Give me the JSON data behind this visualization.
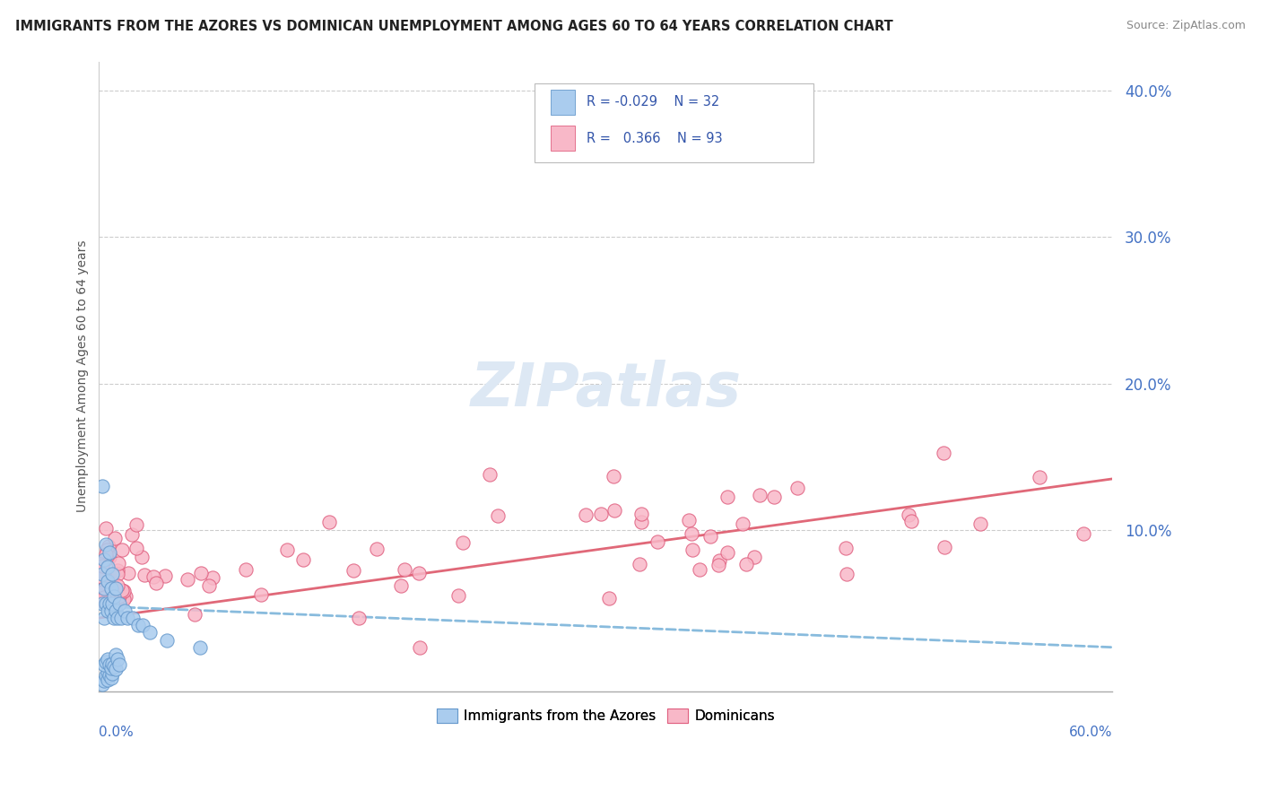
{
  "title": "IMMIGRANTS FROM THE AZORES VS DOMINICAN UNEMPLOYMENT AMONG AGES 60 TO 64 YEARS CORRELATION CHART",
  "source": "Source: ZipAtlas.com",
  "ylabel": "Unemployment Among Ages 60 to 64 years",
  "legend_label1": "Immigrants from the Azores",
  "legend_label2": "Dominicans",
  "color_azores_fill": "#aaccee",
  "color_azores_edge": "#6699cc",
  "color_dominican_fill": "#f8b8c8",
  "color_dominican_edge": "#e06080",
  "color_azores_line": "#88bbdd",
  "color_dominican_line": "#e06878",
  "xlim": [
    0.0,
    0.6
  ],
  "ylim": [
    -0.01,
    0.42
  ],
  "background_color": "#ffffff",
  "grid_color": "#cccccc",
  "tick_color": "#4472C4",
  "watermark_color": "#dde8f4"
}
